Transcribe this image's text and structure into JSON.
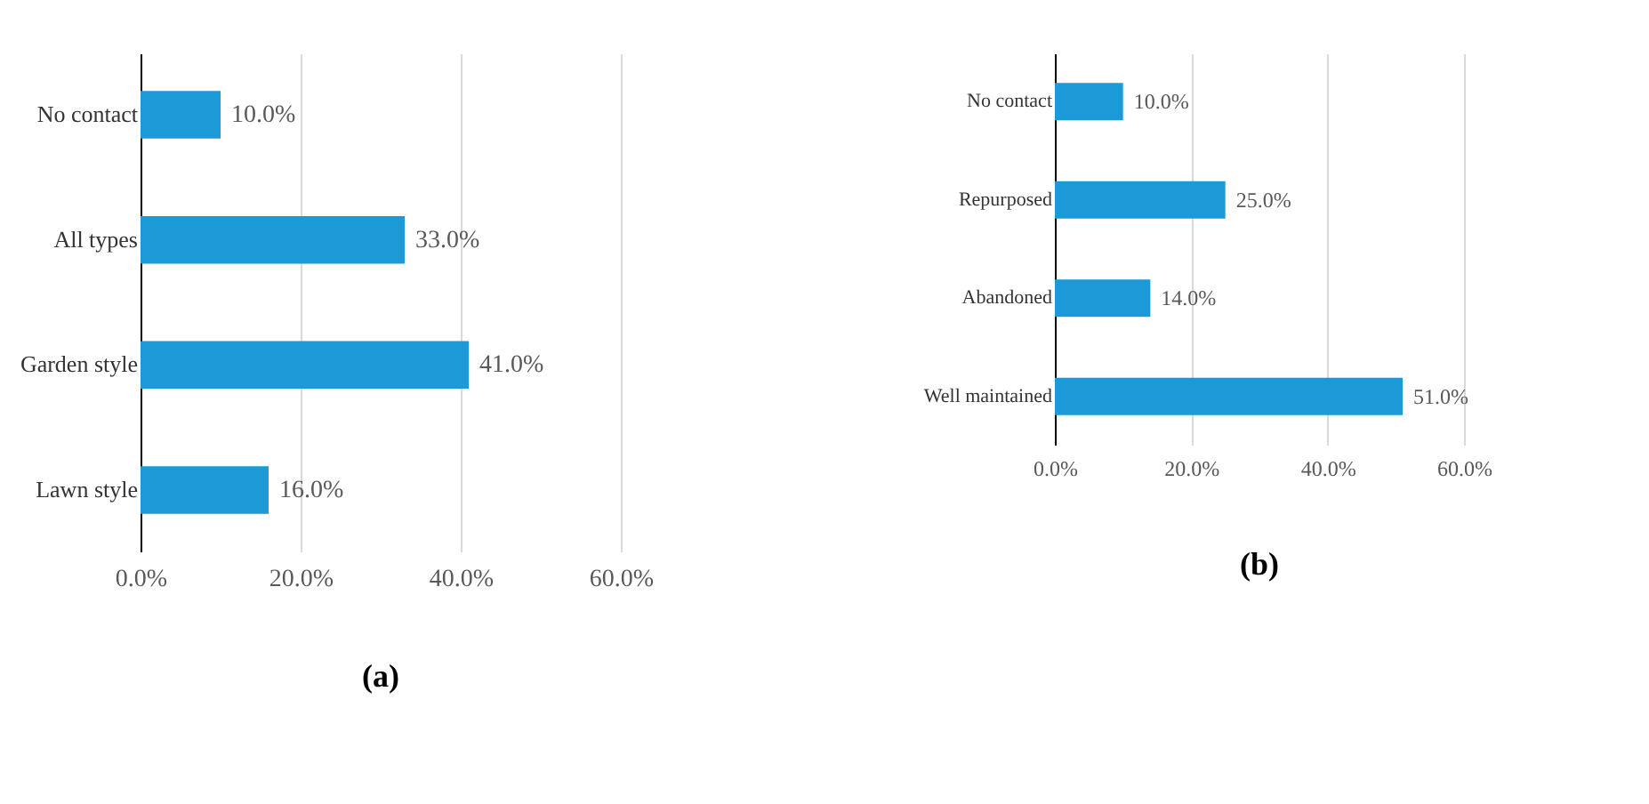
{
  "chart_data": [
    {
      "type": "bar",
      "orientation": "horizontal",
      "title": "(a)",
      "categories": [
        "No contact",
        "All types",
        "Garden style",
        "Lawn style"
      ],
      "series": [
        {
          "color": "#1b9ad7",
          "values": [
            10,
            33,
            41,
            16
          ],
          "value_labels": [
            "10.0%",
            "33.0%",
            "41.0%",
            "16.0%"
          ]
        }
      ],
      "xlim": [
        0,
        60
      ],
      "xticks": [
        {
          "value": 0,
          "label": "0.0%"
        },
        {
          "value": 20,
          "label": "20.0%"
        },
        {
          "value": 40,
          "label": "40.0%"
        },
        {
          "value": 60,
          "label": "60.0%"
        }
      ],
      "grid": "x"
    },
    {
      "type": "bar",
      "orientation": "horizontal",
      "title": "(b)",
      "categories": [
        "No contact",
        "Repurposed",
        "Abandoned",
        "Well maintained"
      ],
      "series": [
        {
          "color": "#1b9ad7",
          "values": [
            10,
            25,
            14,
            51
          ],
          "value_labels": [
            "10.0%",
            "25.0%",
            "14.0%",
            "51.0%"
          ]
        }
      ],
      "xlim": [
        0,
        60
      ],
      "xticks": [
        {
          "value": 0,
          "label": "0.0%"
        },
        {
          "value": 20,
          "label": "20.0%"
        },
        {
          "value": 40,
          "label": "40.0%"
        },
        {
          "value": 60,
          "label": "60.0%"
        }
      ],
      "grid": "x"
    }
  ]
}
